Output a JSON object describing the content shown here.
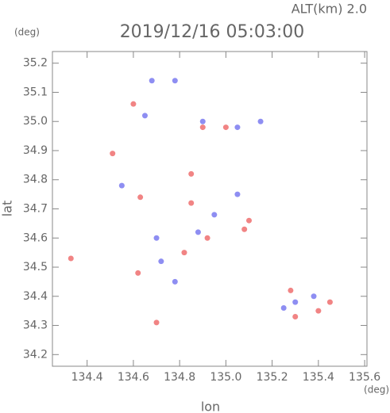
{
  "chart_data": {
    "type": "scatter",
    "title": "2019/12/16 05:03:00",
    "subtitle": "ALT(km) 2.0",
    "x_label": "lon",
    "y_label": "lat",
    "x_unit": "(deg)",
    "y_unit": "(deg)",
    "xlim": [
      134.25,
      135.61
    ],
    "ylim": [
      34.16,
      35.24
    ],
    "xticks": [
      134.4,
      134.6,
      134.8,
      {
        "value": 135.0,
        "label": "135.0"
      },
      135.2,
      135.4,
      135.6
    ],
    "yticks": [
      34.2,
      34.3,
      34.4,
      34.5,
      34.6,
      34.7,
      34.8,
      34.9,
      {
        "value": 35.0,
        "label": "35.0"
      },
      35.1,
      35.2
    ],
    "series": [
      {
        "color": "#ee6f6f",
        "x": [
          134.33,
          134.51,
          134.7,
          134.6,
          134.63,
          134.82,
          134.85,
          134.9,
          135.1,
          135.08,
          135.4,
          135.45,
          135.3,
          134.85,
          134.92,
          135.28,
          134.62,
          135.0
        ],
        "y": [
          34.53,
          34.89,
          34.31,
          35.06,
          34.74,
          34.55,
          34.72,
          34.98,
          34.66,
          34.63,
          34.35,
          34.38,
          34.33,
          34.82,
          34.6,
          34.42,
          34.48,
          34.98
        ]
      },
      {
        "color": "#7a7af0",
        "x": [
          134.65,
          134.68,
          134.9,
          134.55,
          134.95,
          135.05,
          135.25,
          135.3,
          134.78,
          134.72,
          135.05,
          134.78,
          134.7,
          135.15,
          135.38,
          134.88
        ],
        "y": [
          35.02,
          35.14,
          35.0,
          34.78,
          34.68,
          34.75,
          34.36,
          34.38,
          34.45,
          34.52,
          34.98,
          35.14,
          34.6,
          35.0,
          34.4,
          34.62
        ]
      }
    ]
  }
}
